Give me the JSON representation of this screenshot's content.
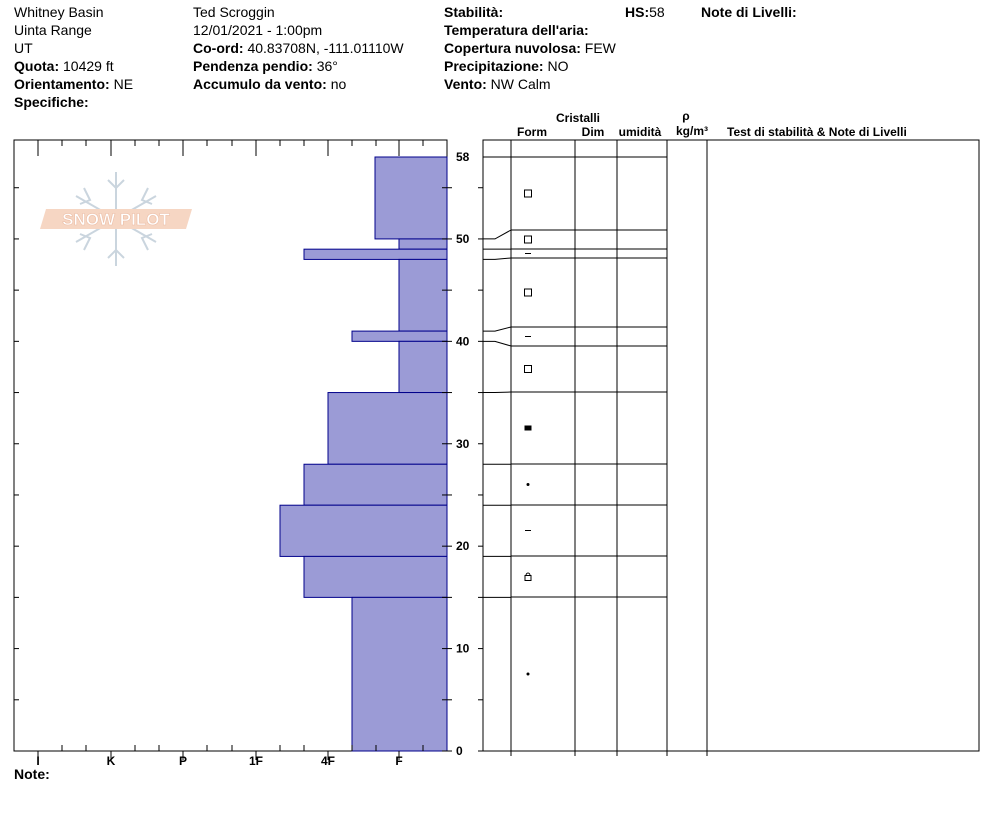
{
  "header": {
    "location": "Whitney Basin",
    "range": "Uinta Range",
    "state": "UT",
    "elevation_label": "Quota:",
    "elevation_value": "10429 ft",
    "aspect_label": "Orientamento:",
    "aspect_value": "NE",
    "specifics_label": "Specifiche:",
    "observer": "Ted Scroggin",
    "datetime": "12/01/2021 - 1:00pm",
    "coords_label": "Co-ord:",
    "coords_value": "40.83708N, -111.01110W",
    "slope_label": "Pendenza pendio:",
    "slope_value": "36°",
    "wind_loading_label": "Accumulo da vento:",
    "wind_loading_value": "no",
    "stability_label": "Stabilità:",
    "air_temp_label": "Temperatura dell'aria:",
    "cloud_label": "Copertura nuvolosa:",
    "cloud_value": "FEW",
    "precip_label": "Precipitazione:",
    "precip_value": "NO",
    "wind_label": "Vento:",
    "wind_value": "NW Calm",
    "hs_label": "HS:",
    "hs_value": "58",
    "layer_notes_label": "Note di Livelli:"
  },
  "logo": {
    "text": "SNOW PILOT"
  },
  "footer": {
    "notes_label": "Note:"
  },
  "table_headers": {
    "crystals": "Cristalli",
    "form": "Form",
    "dim": "Dim",
    "humidity": "umidità",
    "rho": "ρ",
    "density_unit": "kg/m³",
    "tests": "Test di stabilità & Note di Livelli"
  },
  "chart_data": {
    "type": "bar",
    "orientation": "horizontal",
    "y_label": "",
    "y_range": [
      0,
      58
    ],
    "y_ticks": [
      0,
      10,
      20,
      30,
      40,
      50,
      58
    ],
    "hardness_scale": [
      "I",
      "K",
      "P",
      "1F",
      "4F",
      "F"
    ],
    "hardness_axis_note": "hardness scale from F (right) to I (left)",
    "fill_color": "#9b9bd6",
    "stroke_color": "#00008b",
    "layers": [
      {
        "top": 58,
        "bottom": 50,
        "hardness": "F+",
        "grain": "square"
      },
      {
        "top": 50,
        "bottom": 49,
        "hardness": "F",
        "grain": "square"
      },
      {
        "top": 49,
        "bottom": 48,
        "hardness": "4F+",
        "grain": "dash"
      },
      {
        "top": 48,
        "bottom": 41,
        "hardness": "F",
        "grain": "square"
      },
      {
        "top": 41,
        "bottom": 40,
        "hardness": "4F-",
        "grain": "dash"
      },
      {
        "top": 40,
        "bottom": 35,
        "hardness": "F",
        "grain": "square"
      },
      {
        "top": 35,
        "bottom": 28,
        "hardness": "4F",
        "grain": "filled-square"
      },
      {
        "top": 28,
        "bottom": 24,
        "hardness": "4F+",
        "grain": "dot"
      },
      {
        "top": 24,
        "bottom": 19,
        "hardness": "1F-",
        "grain": "dash"
      },
      {
        "top": 19,
        "bottom": 15,
        "hardness": "4F+",
        "grain": "lock"
      },
      {
        "top": 15,
        "bottom": 0,
        "hardness": "4F-",
        "grain": "dot"
      }
    ]
  }
}
